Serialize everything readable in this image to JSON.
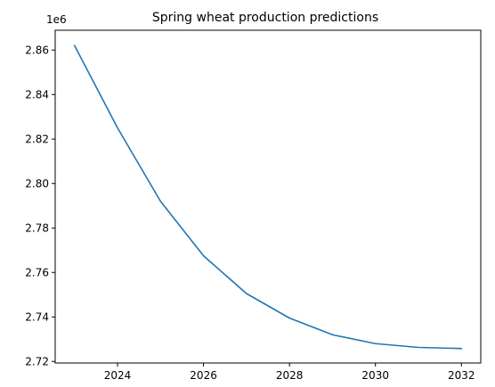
{
  "chart_data": {
    "type": "line",
    "title": "Spring wheat production predictions",
    "xlabel": "",
    "ylabel": "",
    "y_offset_label": "1e6",
    "x": [
      2023,
      2024,
      2025,
      2026,
      2027,
      2028,
      2029,
      2030,
      2031,
      2032
    ],
    "series": [
      {
        "values": [
          2.862,
          2.825,
          2.792,
          2.7675,
          2.7505,
          2.7395,
          2.732,
          2.728,
          2.7263,
          2.7258
        ]
      }
    ],
    "xlim": [
      2022.55,
      2032.45
    ],
    "ylim": [
      2.7193,
      2.8689
    ],
    "x_ticks": [
      2024,
      2026,
      2028,
      2030,
      2032
    ],
    "y_ticks": [
      2.72,
      2.74,
      2.76,
      2.78,
      2.8,
      2.82,
      2.84,
      2.86
    ],
    "y_tick_labels": [
      "2.72",
      "2.74",
      "2.76",
      "2.78",
      "2.80",
      "2.82",
      "2.84",
      "2.86"
    ],
    "grid": false,
    "line_color": "#1f77b4"
  }
}
